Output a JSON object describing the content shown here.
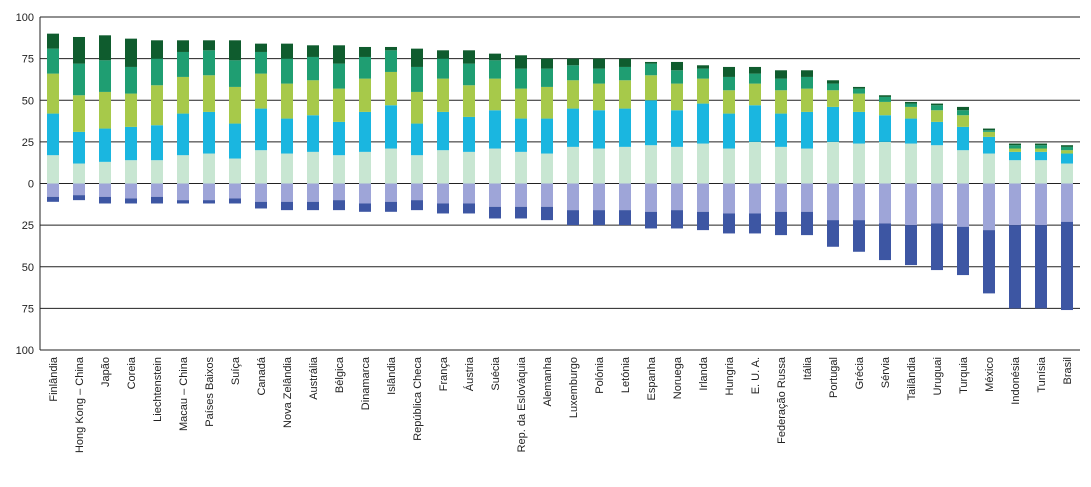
{
  "chart_data": {
    "type": "bar",
    "stacked": true,
    "diverging": true,
    "grid": true,
    "ylim": [
      -100,
      100
    ],
    "yticks": [
      {
        "value": 100,
        "label": "100"
      },
      {
        "value": 75,
        "label": "75"
      },
      {
        "value": 50,
        "label": "50"
      },
      {
        "value": 25,
        "label": "25"
      },
      {
        "value": 0,
        "label": "0"
      },
      {
        "value": -25,
        "label": "25"
      },
      {
        "value": -50,
        "label": "50"
      },
      {
        "value": -75,
        "label": "75"
      },
      {
        "value": -100,
        "label": "100"
      }
    ],
    "categories": [
      "Finlândia",
      "Hong Kong – China",
      "Japão",
      "Coreia",
      "Liechtenstein",
      "Macau – China",
      "Países Baixos",
      "Suíça",
      "Canadá",
      "Nova Zelândia",
      "Austrália",
      "Bélgica",
      "Dinamarca",
      "Islândia",
      "República Checa",
      "França",
      "Áustria",
      "Suécia",
      "Rep. da Eslováquia",
      "Alemanha",
      "Luxemburgo",
      "Polónia",
      "Letónia",
      "Espanha",
      "Noruega",
      "Irlanda",
      "Hungria",
      "E. U. A.",
      "Federação Russa",
      "Itália",
      "Portugal",
      "Grécia",
      "Sérvia",
      "Tailândia",
      "Uruguai",
      "Turquia",
      "México",
      "Indonésia",
      "Tunísia",
      "Brasil"
    ],
    "series": [
      {
        "color": "#c8e6d2",
        "values": [
          17,
          12,
          13,
          14,
          14,
          17,
          18,
          15,
          20,
          18,
          19,
          17,
          19,
          21,
          17,
          20,
          19,
          21,
          19,
          18,
          22,
          21,
          22,
          23,
          22,
          24,
          21,
          25,
          22,
          21,
          25,
          24,
          25,
          24,
          23,
          20,
          18,
          14,
          14,
          12
        ]
      },
      {
        "color": "#1ab6e0",
        "values": [
          25,
          19,
          20,
          20,
          21,
          25,
          25,
          21,
          25,
          21,
          22,
          20,
          24,
          26,
          19,
          23,
          21,
          23,
          20,
          21,
          23,
          23,
          23,
          27,
          22,
          24,
          21,
          22,
          20,
          22,
          21,
          19,
          16,
          15,
          14,
          14,
          10,
          5,
          5,
          6
        ]
      },
      {
        "color": "#a7c94a",
        "values": [
          24,
          22,
          22,
          20,
          24,
          22,
          22,
          22,
          21,
          21,
          21,
          20,
          20,
          20,
          19,
          20,
          19,
          19,
          18,
          19,
          17,
          16,
          17,
          15,
          16,
          15,
          14,
          13,
          14,
          14,
          10,
          11,
          8,
          7,
          7,
          7,
          3,
          2,
          2,
          2
        ]
      },
      {
        "color": "#1f9e72",
        "values": [
          15,
          19,
          19,
          16,
          16,
          15,
          15,
          16,
          13,
          15,
          14,
          15,
          13,
          13,
          15,
          12,
          13,
          11,
          12,
          11,
          9,
          9,
          8,
          7,
          8,
          6,
          8,
          6,
          7,
          7,
          4,
          3,
          3,
          2,
          3,
          3,
          1,
          2,
          2,
          2
        ]
      },
      {
        "color": "#0f5c2e",
        "values": [
          9,
          16,
          15,
          17,
          11,
          7,
          6,
          12,
          5,
          9,
          7,
          11,
          6,
          2,
          11,
          5,
          8,
          4,
          8,
          6,
          4,
          6,
          5,
          1,
          5,
          2,
          6,
          4,
          5,
          4,
          2,
          1,
          1,
          1,
          1,
          2,
          1,
          1,
          1,
          1
        ]
      },
      {
        "color": "#9ea5d8",
        "values": [
          -8,
          -7,
          -8,
          -9,
          -8,
          -10,
          -10,
          -9,
          -11,
          -11,
          -11,
          -10,
          -12,
          -11,
          -10,
          -12,
          -12,
          -14,
          -14,
          -14,
          -16,
          -16,
          -16,
          -17,
          -16,
          -17,
          -18,
          -18,
          -17,
          -17,
          -22,
          -22,
          -24,
          -25,
          -24,
          -26,
          -28,
          -25,
          -25,
          -23
        ]
      },
      {
        "color": "#3d56a3",
        "values": [
          -3,
          -3,
          -4,
          -3,
          -4,
          -2,
          -2,
          -3,
          -4,
          -5,
          -5,
          -6,
          -5,
          -6,
          -6,
          -6,
          -6,
          -7,
          -7,
          -8,
          -9,
          -9,
          -9,
          -10,
          -11,
          -11,
          -12,
          -12,
          -14,
          -14,
          -16,
          -19,
          -22,
          -24,
          -28,
          -29,
          -38,
          -50,
          -50,
          -53
        ]
      }
    ]
  }
}
